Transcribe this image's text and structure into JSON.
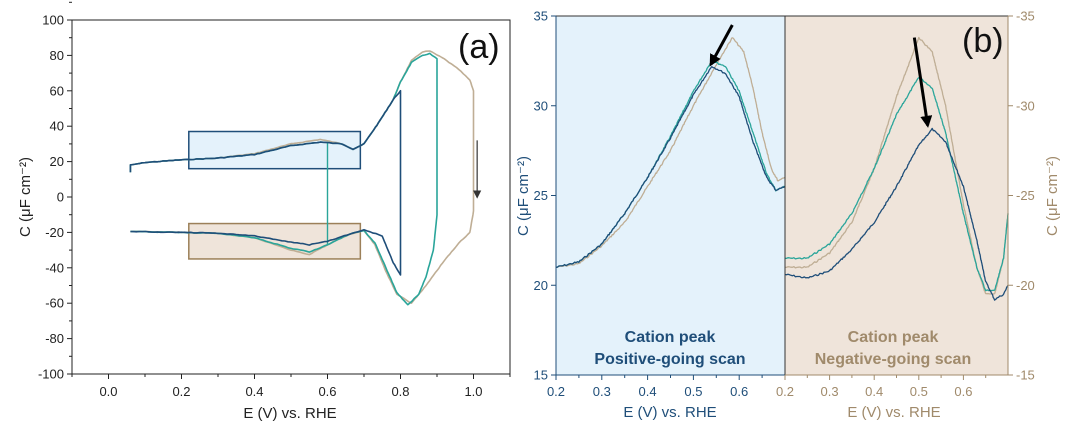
{
  "colors": {
    "dark_blue": "#1f4e79",
    "teal": "#2aa59a",
    "beige": "#bfae95",
    "axis": "#222222",
    "blue_fill": "#e4f2fb",
    "beige_fill": "#efe4da",
    "blue_box": "#1f4e79",
    "beige_box": "#9c8059"
  },
  "chart_data": [
    {
      "type": "line",
      "panel_label": "(a)",
      "xlabel": "E (V) vs. RHE",
      "ylabel": "C (μF cm⁻²)",
      "xlim": [
        -0.1,
        1.1
      ],
      "ylim": [
        -100,
        100
      ],
      "xticks": [
        0.0,
        0.2,
        0.4,
        0.6,
        0.8,
        1.0
      ],
      "yticks": [
        -100,
        -80,
        -60,
        -40,
        -20,
        0,
        20,
        40,
        60,
        80,
        100
      ],
      "tick_labels_x": [
        "0.0",
        "0.2",
        "0.4",
        "0.6",
        "0.8",
        "1.0"
      ],
      "tick_labels_y": [
        "-100",
        "-80",
        "-60",
        "-40",
        "-20",
        "0",
        "20",
        "40",
        "60",
        "80",
        "100"
      ],
      "highlight_boxes": [
        {
          "x": [
            0.22,
            0.69
          ],
          "y": [
            16,
            37
          ],
          "style": "blue"
        },
        {
          "x": [
            0.22,
            0.69
          ],
          "y": [
            -35,
            -15
          ],
          "style": "beige"
        }
      ],
      "arrow": {
        "from": [
          1.01,
          32
        ],
        "to": [
          1.01,
          0
        ]
      },
      "series": [
        {
          "color_key": "dark_blue",
          "points": [
            [
              0.06,
              14
            ],
            [
              0.06,
              18
            ],
            [
              0.1,
              19.5
            ],
            [
              0.2,
              21
            ],
            [
              0.3,
              22
            ],
            [
              0.4,
              24
            ],
            [
              0.5,
              29
            ],
            [
              0.58,
              31
            ],
            [
              0.64,
              30
            ],
            [
              0.67,
              27
            ],
            [
              0.7,
              30
            ],
            [
              0.74,
              42
            ],
            [
              0.78,
              55
            ],
            [
              0.8,
              60
            ],
            [
              0.8,
              -44
            ],
            [
              0.78,
              -37
            ],
            [
              0.75,
              -22
            ],
            [
              0.7,
              -18.5
            ],
            [
              0.66,
              -21
            ],
            [
              0.6,
              -25
            ],
            [
              0.55,
              -27
            ],
            [
              0.5,
              -25.5
            ],
            [
              0.4,
              -22
            ],
            [
              0.3,
              -20.5
            ],
            [
              0.2,
              -20
            ],
            [
              0.06,
              -19.5
            ]
          ]
        },
        {
          "color_key": "teal",
          "points": [
            [
              0.06,
              14
            ],
            [
              0.06,
              18
            ],
            [
              0.1,
              19.5
            ],
            [
              0.2,
              21
            ],
            [
              0.3,
              22
            ],
            [
              0.4,
              24
            ],
            [
              0.5,
              29
            ],
            [
              0.58,
              31
            ],
            [
              0.64,
              30
            ],
            [
              0.67,
              27
            ],
            [
              0.7,
              30
            ],
            [
              0.74,
              42
            ],
            [
              0.78,
              55
            ],
            [
              0.8,
              65
            ],
            [
              0.83,
              76
            ],
            [
              0.86,
              80
            ],
            [
              0.88,
              81
            ],
            [
              0.9,
              78
            ],
            [
              0.9,
              -10
            ],
            [
              0.89,
              -30
            ],
            [
              0.87,
              -45
            ],
            [
              0.85,
              -55
            ],
            [
              0.82,
              -61
            ],
            [
              0.79,
              -54
            ],
            [
              0.76,
              -40
            ],
            [
              0.73,
              -26
            ],
            [
              0.7,
              -19
            ],
            [
              0.66,
              -21
            ],
            [
              0.6,
              -27
            ],
            [
              0.55,
              -31
            ],
            [
              0.5,
              -29
            ],
            [
              0.4,
              -23
            ],
            [
              0.3,
              -20.5
            ],
            [
              0.2,
              -20
            ],
            [
              0.06,
              -19.5
            ]
          ]
        },
        {
          "color_key": "beige",
          "points": [
            [
              0.06,
              14
            ],
            [
              0.06,
              18
            ],
            [
              0.1,
              19.5
            ],
            [
              0.2,
              21
            ],
            [
              0.3,
              22
            ],
            [
              0.4,
              24.5
            ],
            [
              0.5,
              30
            ],
            [
              0.58,
              32.5
            ],
            [
              0.64,
              30
            ],
            [
              0.67,
              27
            ],
            [
              0.7,
              30
            ],
            [
              0.74,
              42
            ],
            [
              0.78,
              55
            ],
            [
              0.8,
              65
            ],
            [
              0.83,
              77
            ],
            [
              0.86,
              82
            ],
            [
              0.88,
              82.5
            ],
            [
              0.92,
              78
            ],
            [
              0.96,
              72
            ],
            [
              0.99,
              66
            ],
            [
              1.0,
              60
            ],
            [
              1.0,
              -8
            ],
            [
              0.99,
              -20
            ],
            [
              0.96,
              -26
            ],
            [
              0.92,
              -36
            ],
            [
              0.87,
              -50
            ],
            [
              0.83,
              -60
            ],
            [
              0.79,
              -55
            ],
            [
              0.76,
              -42
            ],
            [
              0.73,
              -27
            ],
            [
              0.7,
              -19
            ],
            [
              0.66,
              -21
            ],
            [
              0.6,
              -27
            ],
            [
              0.55,
              -32.5
            ],
            [
              0.5,
              -30
            ],
            [
              0.4,
              -23
            ],
            [
              0.3,
              -20.5
            ],
            [
              0.2,
              -20
            ],
            [
              0.06,
              -19.5
            ]
          ]
        }
      ],
      "connectors": [
        {
          "color_key": "teal",
          "points": [
            [
              0.6,
              31
            ],
            [
              0.6,
              -27
            ]
          ]
        }
      ]
    },
    {
      "type": "line",
      "panel_label": "(b)",
      "sub_panels": [
        {
          "side": "left",
          "title_lines": [
            "Cation peak",
            "Positive-going scan"
          ],
          "xlabel": "E (V) vs. RHE",
          "ylabel": "C (μF cm⁻²)",
          "xlim": [
            0.2,
            0.7
          ],
          "ylim": [
            15,
            35
          ],
          "xticks": [
            0.2,
            0.3,
            0.4,
            0.5,
            0.6
          ],
          "tick_labels_x": [
            "0.2",
            "0.3",
            "0.4",
            "0.5",
            "0.6"
          ],
          "yticks": [
            15,
            20,
            25,
            30,
            35
          ],
          "tick_labels_y": [
            "15",
            "20",
            "25",
            "30",
            "35"
          ],
          "arrow": {
            "from": [
              0.585,
              34.5
            ],
            "to": [
              0.538,
              32.3
            ]
          },
          "series": [
            {
              "color_key": "beige",
              "peak_x": 0.585,
              "peak_y": 33.8,
              "points": [
                [
                  0.2,
                  21
                ],
                [
                  0.25,
                  21.2
                ],
                [
                  0.3,
                  22.2
                ],
                [
                  0.35,
                  23.5
                ],
                [
                  0.4,
                  25.5
                ],
                [
                  0.45,
                  27.5
                ],
                [
                  0.5,
                  30
                ],
                [
                  0.55,
                  32.3
                ],
                [
                  0.585,
                  33.8
                ],
                [
                  0.61,
                  33
                ],
                [
                  0.63,
                  31
                ],
                [
                  0.65,
                  28.5
                ],
                [
                  0.67,
                  26.5
                ],
                [
                  0.685,
                  25.8
                ],
                [
                  0.7,
                  26
                ]
              ]
            },
            {
              "color_key": "teal",
              "peak_x": 0.54,
              "peak_y": 32.5,
              "points": [
                [
                  0.2,
                  21
                ],
                [
                  0.25,
                  21.3
                ],
                [
                  0.3,
                  22.3
                ],
                [
                  0.35,
                  24
                ],
                [
                  0.4,
                  26
                ],
                [
                  0.45,
                  28.3
                ],
                [
                  0.5,
                  30.8
                ],
                [
                  0.54,
                  32.5
                ],
                [
                  0.57,
                  32.2
                ],
                [
                  0.6,
                  30.8
                ],
                [
                  0.63,
                  28.5
                ],
                [
                  0.66,
                  26.2
                ],
                [
                  0.68,
                  25.3
                ],
                [
                  0.7,
                  25.5
                ]
              ]
            },
            {
              "color_key": "dark_blue",
              "peak_x": 0.54,
              "peak_y": 32.2,
              "points": [
                [
                  0.2,
                  21
                ],
                [
                  0.25,
                  21.3
                ],
                [
                  0.3,
                  22.3
                ],
                [
                  0.35,
                  24
                ],
                [
                  0.4,
                  26
                ],
                [
                  0.45,
                  28.2
                ],
                [
                  0.5,
                  30.6
                ],
                [
                  0.54,
                  32.2
                ],
                [
                  0.57,
                  31.8
                ],
                [
                  0.6,
                  30.5
                ],
                [
                  0.63,
                  28
                ],
                [
                  0.66,
                  26
                ],
                [
                  0.68,
                  25.3
                ],
                [
                  0.7,
                  25.5
                ]
              ]
            }
          ]
        },
        {
          "side": "right",
          "title_lines": [
            "Cation peak",
            "Negative-going scan"
          ],
          "xlabel": "E (V) vs. RHE",
          "ylabel": "C (μF cm⁻²)",
          "xlim": [
            0.2,
            0.7
          ],
          "ylim": [
            -15,
            -35
          ],
          "xticks": [
            0.2,
            0.3,
            0.4,
            0.5,
            0.6
          ],
          "tick_labels_x": [
            "0.2",
            "0.3",
            "0.4",
            "0.5",
            "0.6"
          ],
          "yticks": [
            -15,
            -20,
            -25,
            -30,
            -35
          ],
          "tick_labels_y": [
            "-15",
            "-20",
            "-25",
            "-30",
            "-35"
          ],
          "arrow": {
            "from": [
              0.49,
              -33.8
            ],
            "to": [
              0.52,
              -28.9
            ]
          },
          "series": [
            {
              "color_key": "beige",
              "peak_x": 0.5,
              "peak_y": -33.8,
              "points": [
                [
                  0.2,
                  -21
                ],
                [
                  0.25,
                  -21
                ],
                [
                  0.3,
                  -21.8
                ],
                [
                  0.35,
                  -23.5
                ],
                [
                  0.4,
                  -26.5
                ],
                [
                  0.45,
                  -30.5
                ],
                [
                  0.5,
                  -33.8
                ],
                [
                  0.53,
                  -33
                ],
                [
                  0.56,
                  -30
                ],
                [
                  0.6,
                  -24.5
                ],
                [
                  0.63,
                  -21
                ],
                [
                  0.65,
                  -19.5
                ],
                [
                  0.67,
                  -19.5
                ],
                [
                  0.69,
                  -21.5
                ],
                [
                  0.7,
                  -24
                ]
              ]
            },
            {
              "color_key": "teal",
              "peak_x": 0.5,
              "peak_y": -31.6,
              "points": [
                [
                  0.2,
                  -21.5
                ],
                [
                  0.25,
                  -21.5
                ],
                [
                  0.3,
                  -22.3
                ],
                [
                  0.35,
                  -24
                ],
                [
                  0.4,
                  -26.5
                ],
                [
                  0.45,
                  -29.5
                ],
                [
                  0.5,
                  -31.6
                ],
                [
                  0.53,
                  -31
                ],
                [
                  0.56,
                  -28.5
                ],
                [
                  0.6,
                  -24
                ],
                [
                  0.63,
                  -21
                ],
                [
                  0.65,
                  -19.7
                ],
                [
                  0.67,
                  -19.7
                ],
                [
                  0.69,
                  -21.5
                ],
                [
                  0.7,
                  -24
                ]
              ]
            },
            {
              "color_key": "dark_blue",
              "peak_x": 0.53,
              "peak_y": -28.7,
              "points": [
                [
                  0.2,
                  -20.6
                ],
                [
                  0.25,
                  -20.4
                ],
                [
                  0.3,
                  -20.8
                ],
                [
                  0.35,
                  -22
                ],
                [
                  0.4,
                  -23.5
                ],
                [
                  0.45,
                  -25.5
                ],
                [
                  0.5,
                  -27.8
                ],
                [
                  0.53,
                  -28.7
                ],
                [
                  0.56,
                  -28
                ],
                [
                  0.6,
                  -25.5
                ],
                [
                  0.63,
                  -22.5
                ],
                [
                  0.65,
                  -20.2
                ],
                [
                  0.67,
                  -19.2
                ],
                [
                  0.69,
                  -19.5
                ],
                [
                  0.7,
                  -20
                ]
              ]
            }
          ]
        }
      ]
    }
  ]
}
